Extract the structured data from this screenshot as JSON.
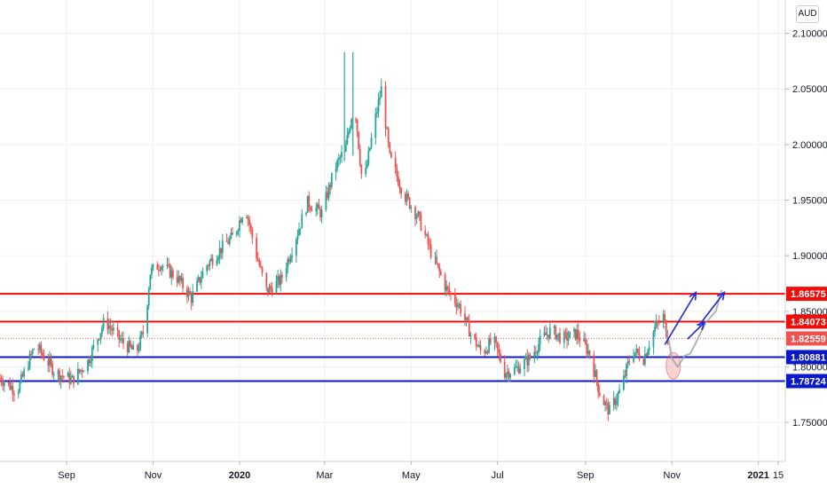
{
  "currency": "AUD",
  "colors": {
    "up": "#26a69a",
    "down": "#ef5350",
    "resistance": "#f20d0d",
    "support": "#0a18c9",
    "last_price": "#ef5350",
    "arrow_blue": "#1e2bd6",
    "projection": "#9aa3ad"
  },
  "chart_data": {
    "type": "candlestick",
    "title": "",
    "xlabel": "",
    "ylabel": "",
    "ylim": [
      1.715,
      2.13
    ],
    "xlim": [
      "2019-07-16",
      "2021-01-20"
    ],
    "grid": true,
    "y_ticks": [
      "1.75000",
      "1.80000",
      "1.85000",
      "1.90000",
      "1.95000",
      "2.00000",
      "2.05000",
      "2.10000"
    ],
    "x_ticks": [
      {
        "date": "2019-09-01",
        "label": "Sep",
        "year": false
      },
      {
        "date": "2019-11-01",
        "label": "Nov",
        "year": false
      },
      {
        "date": "2020-01-01",
        "label": "2020",
        "year": true
      },
      {
        "date": "2020-03-01",
        "label": "Mar",
        "year": false
      },
      {
        "date": "2020-05-01",
        "label": "May",
        "year": false
      },
      {
        "date": "2020-07-01",
        "label": "Jul",
        "year": false
      },
      {
        "date": "2020-09-01",
        "label": "Sep",
        "year": false
      },
      {
        "date": "2020-11-01",
        "label": "Nov",
        "year": false
      },
      {
        "date": "2021-01-01",
        "label": "2021",
        "year": true
      },
      {
        "date": "2021-01-15",
        "label": "15",
        "year": false
      }
    ],
    "price_path": [
      [
        "2019-07-16",
        1.79
      ],
      [
        "2019-07-28",
        1.778
      ],
      [
        "2019-08-10",
        1.82
      ],
      [
        "2019-08-24",
        1.795
      ],
      [
        "2019-09-05",
        1.788
      ],
      [
        "2019-09-16",
        1.805
      ],
      [
        "2019-09-28",
        1.842
      ],
      [
        "2019-10-08",
        1.825
      ],
      [
        "2019-10-20",
        1.812
      ],
      [
        "2019-10-26",
        1.835
      ],
      [
        "2019-10-30",
        1.885
      ],
      [
        "2019-11-06",
        1.893
      ],
      [
        "2019-11-18",
        1.88
      ],
      [
        "2019-11-28",
        1.862
      ],
      [
        "2019-12-08",
        1.89
      ],
      [
        "2019-12-18",
        1.905
      ],
      [
        "2019-12-28",
        1.918
      ],
      [
        "2020-01-05",
        1.945
      ],
      [
        "2020-01-12",
        1.905
      ],
      [
        "2020-01-20",
        1.868
      ],
      [
        "2020-01-30",
        1.878
      ],
      [
        "2020-02-08",
        1.91
      ],
      [
        "2020-02-18",
        1.948
      ],
      [
        "2020-02-28",
        1.938
      ],
      [
        "2020-03-08",
        1.978
      ],
      [
        "2020-03-16",
        1.998
      ],
      [
        "2020-03-22",
        2.04
      ],
      [
        "2020-03-28",
        1.96
      ],
      [
        "2020-04-04",
        2.012
      ],
      [
        "2020-04-10",
        2.05
      ],
      [
        "2020-04-16",
        1.988
      ],
      [
        "2020-04-26",
        1.955
      ],
      [
        "2020-05-06",
        1.935
      ],
      [
        "2020-05-16",
        1.9
      ],
      [
        "2020-05-26",
        1.87
      ],
      [
        "2020-06-04",
        1.855
      ],
      [
        "2020-06-12",
        1.83
      ],
      [
        "2020-06-20",
        1.812
      ],
      [
        "2020-06-28",
        1.825
      ],
      [
        "2020-07-06",
        1.795
      ],
      [
        "2020-07-14",
        1.798
      ],
      [
        "2020-07-24",
        1.808
      ],
      [
        "2020-08-01",
        1.825
      ],
      [
        "2020-08-08",
        1.833
      ],
      [
        "2020-08-16",
        1.825
      ],
      [
        "2020-08-26",
        1.83
      ],
      [
        "2020-09-04",
        1.812
      ],
      [
        "2020-09-12",
        1.772
      ],
      [
        "2020-09-18",
        1.76
      ],
      [
        "2020-09-26",
        1.78
      ],
      [
        "2020-10-04",
        1.815
      ],
      [
        "2020-10-12",
        1.808
      ],
      [
        "2020-10-20",
        1.835
      ],
      [
        "2020-10-26",
        1.845
      ],
      [
        "2020-10-29",
        1.826
      ]
    ],
    "spikes": [
      {
        "date": "2020-03-15",
        "high": 2.083,
        "low": 1.985
      },
      {
        "date": "2020-03-21",
        "high": 2.083,
        "low": 1.99
      }
    ],
    "horizontal_levels": [
      {
        "value": 1.86575,
        "label": "1.86575",
        "kind": "resistance"
      },
      {
        "value": 1.84073,
        "label": "1.84073",
        "kind": "resistance"
      },
      {
        "value": 1.82559,
        "label": "1.82559",
        "kind": "last_price"
      },
      {
        "value": 1.80881,
        "label": "1.80881",
        "kind": "support"
      },
      {
        "value": 1.78724,
        "label": "1.78724",
        "kind": "support"
      }
    ],
    "annotations": {
      "arrows": [
        {
          "from": [
            "2020-10-27",
            1.82
          ],
          "to": [
            "2020-11-18",
            1.867
          ],
          "color": "arrow_blue"
        },
        {
          "from": [
            "2020-11-12",
            1.825
          ],
          "to": [
            "2020-11-24",
            1.84
          ],
          "color": "arrow_blue"
        },
        {
          "from": [
            "2020-11-20",
            1.837
          ],
          "to": [
            "2020-12-08",
            1.867
          ],
          "color": "arrow_blue"
        }
      ],
      "projection_path": [
        [
          "2020-10-27",
          1.837
        ],
        [
          "2020-10-30",
          1.822
        ],
        [
          "2020-11-01",
          1.808
        ],
        [
          "2020-11-05",
          1.8
        ],
        [
          "2020-11-10",
          1.81
        ],
        [
          "2020-11-14",
          1.812
        ],
        [
          "2020-11-18",
          1.822
        ],
        [
          "2020-11-25",
          1.84
        ],
        [
          "2020-12-02",
          1.85
        ],
        [
          "2020-12-06",
          1.869
        ]
      ],
      "highlight_ellipse": {
        "center": [
          "2020-11-02",
          1.801
        ],
        "rx_days": 5,
        "ry": 0.012
      }
    }
  }
}
